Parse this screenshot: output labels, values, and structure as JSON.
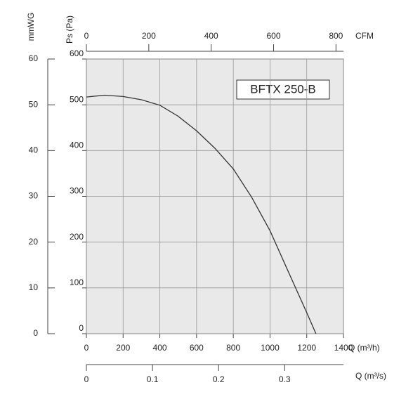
{
  "chart_data": {
    "type": "line",
    "annotation": "BFTX 250-B",
    "xlabel": "Q (m³/h)",
    "ylabel": "Ps (Pa)",
    "x": [
      0,
      100,
      200,
      300,
      400,
      500,
      600,
      700,
      800,
      900,
      1000,
      1100,
      1200,
      1250
    ],
    "series": [
      {
        "color": "#333333",
        "values": [
          517,
          521,
          518,
          511,
          499,
          475,
          443,
          405,
          360,
          298,
          225,
          135,
          46,
          0
        ]
      }
    ],
    "xlim": [
      0,
      1400
    ],
    "xticks": [
      0,
      200,
      400,
      600,
      800,
      1000,
      1200,
      1400
    ],
    "ylim": [
      0,
      600
    ],
    "yticks": [
      0,
      100,
      200,
      300,
      400,
      500,
      600
    ],
    "grid": true,
    "cfm_axis": {
      "label": "CFM",
      "lim": [
        0,
        824
      ],
      "ticks": [
        0,
        200,
        400,
        600,
        800
      ]
    },
    "ms_axis": {
      "label": "Q (m³/s)",
      "lim": [
        0,
        0.389
      ],
      "ticks": [
        0,
        0.1,
        0.2,
        0.3
      ]
    },
    "mmwg_axis": {
      "label": "mmWG",
      "lim": [
        0,
        60
      ],
      "ticks": [
        0,
        10,
        20,
        30,
        40,
        50,
        60
      ]
    }
  }
}
